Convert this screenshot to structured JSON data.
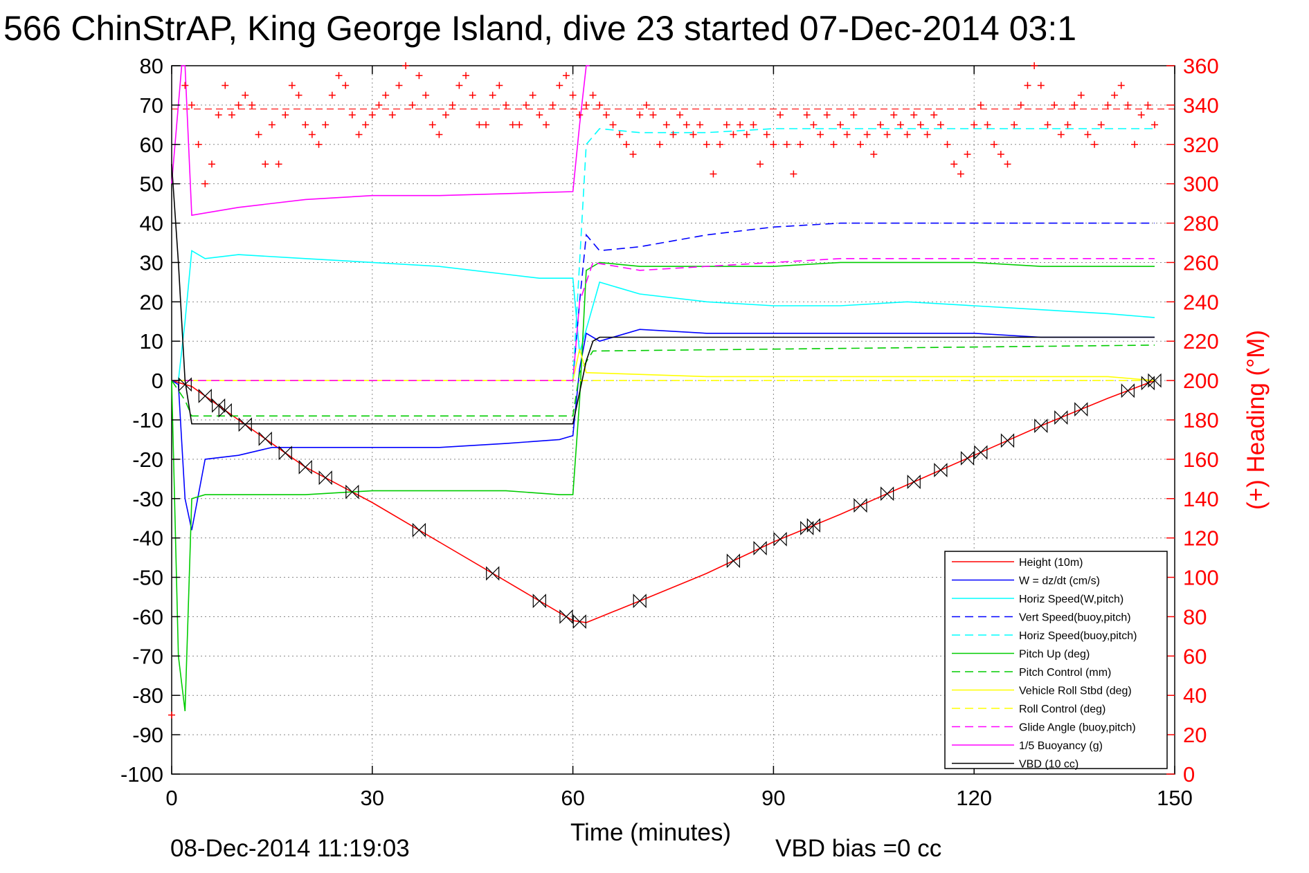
{
  "chart_data": {
    "type": "line",
    "title": "566 ChinStrAP, King George Island, dive 23 started 07-Dec-2014 03:1",
    "xlabel": "Time (minutes)",
    "ylabel": "",
    "y2label": "(+) Heading (°M)",
    "footer_left": "08-Dec-2014 11:19:03",
    "footer_right": "VBD bias =0 cc",
    "xlim": [
      0,
      150
    ],
    "ylim": [
      -100,
      80
    ],
    "y2lim": [
      0,
      360
    ],
    "x_ticks": [
      "0",
      "30",
      "60",
      "90",
      "120",
      "150"
    ],
    "y_ticks": [
      "80",
      "70",
      "60",
      "50",
      "40",
      "30",
      "20",
      "10",
      "0",
      "-10",
      "-20",
      "-30",
      "-40",
      "-50",
      "-60",
      "-70",
      "-80",
      "-90",
      "-100"
    ],
    "y2_ticks": [
      "360",
      "340",
      "320",
      "300",
      "280",
      "260",
      "240",
      "220",
      "200",
      "180",
      "160",
      "140",
      "120",
      "100",
      "80",
      "60",
      "40",
      "20",
      "0"
    ],
    "grid": true,
    "legend_position": "bottom-right",
    "series": [
      {
        "name": "Height (10m)",
        "color": "#ff0000",
        "style": "solid",
        "x": [
          0,
          3,
          10,
          20,
          30,
          40,
          50,
          55,
          60,
          62,
          70,
          80,
          90,
          100,
          110,
          120,
          130,
          140,
          147
        ],
        "y": [
          0,
          -1.5,
          -10,
          -22,
          -31,
          -41,
          -51,
          -56,
          -61,
          -61.5,
          -56,
          -49,
          -41,
          -34,
          -26.5,
          -19,
          -11.5,
          -4.5,
          0
        ]
      },
      {
        "name": "W = dz/dt (cm/s)",
        "color": "#0000ff",
        "style": "solid",
        "x": [
          0,
          1,
          2,
          3,
          5,
          10,
          15,
          20,
          30,
          40,
          50,
          58,
          60,
          61,
          62,
          64,
          70,
          80,
          90,
          100,
          110,
          120,
          130,
          140,
          147
        ],
        "y": [
          0,
          -1,
          -30,
          -38,
          -20,
          -19,
          -17,
          -17,
          -17,
          -17,
          -16,
          -15,
          -14,
          3,
          12,
          10,
          13,
          12,
          12,
          12,
          12,
          12,
          11,
          11,
          11
        ]
      },
      {
        "name": "Horiz Speed(W,pitch)",
        "color": "#00ffff",
        "style": "solid",
        "x": [
          0,
          1,
          2,
          3,
          5,
          10,
          20,
          30,
          40,
          50,
          55,
          60,
          61,
          62,
          64,
          70,
          80,
          90,
          100,
          110,
          120,
          130,
          140,
          147
        ],
        "y": [
          0,
          0,
          15,
          33,
          31,
          32,
          31,
          30,
          29,
          27,
          26,
          26,
          7,
          13,
          25,
          22,
          20,
          19,
          19,
          20,
          19,
          18,
          17,
          16
        ]
      },
      {
        "name": "Vert Speed(buoy,pitch)",
        "color": "#0000ff",
        "style": "dashed",
        "x": [
          60,
          61,
          62,
          64,
          70,
          80,
          90,
          100,
          110,
          120,
          130,
          140,
          147
        ],
        "y": [
          0,
          20,
          37,
          33,
          34,
          37,
          39,
          40,
          40,
          40,
          40,
          40,
          40
        ]
      },
      {
        "name": "Horiz Speed(buoy,pitch)",
        "color": "#00ffff",
        "style": "dashed",
        "x": [
          60,
          61,
          62,
          64,
          70,
          80,
          90,
          100,
          110,
          120,
          130,
          140,
          147
        ],
        "y": [
          0,
          30,
          60,
          64,
          63,
          63,
          64,
          64,
          64,
          64,
          64,
          64,
          64
        ]
      },
      {
        "name": "Pitch Up (deg)",
        "color": "#00cc00",
        "style": "solid",
        "x": [
          0,
          1,
          2,
          3,
          5,
          10,
          20,
          30,
          40,
          50,
          58,
          60,
          61,
          62,
          64,
          70,
          80,
          90,
          100,
          110,
          120,
          130,
          140,
          147
        ],
        "y": [
          0,
          -70,
          -84,
          -30,
          -29,
          -29,
          -29,
          -28,
          -28,
          -28,
          -29,
          -29,
          -5,
          28,
          30,
          29,
          29,
          29,
          30,
          30,
          30,
          29,
          29,
          29
        ]
      },
      {
        "name": "Pitch Control (mm)",
        "color": "#00cc00",
        "style": "dashed",
        "x": [
          0,
          2,
          3,
          60,
          61,
          63,
          147
        ],
        "y": [
          0,
          -5,
          -9,
          -9,
          2,
          7.5,
          9
        ]
      },
      {
        "name": "Vehicle Roll Stbd (deg)",
        "color": "#ffff00",
        "style": "solid",
        "x": [
          0,
          2,
          5,
          20,
          40,
          60,
          61,
          62,
          80,
          100,
          120,
          140,
          147
        ],
        "y": [
          0,
          0,
          0,
          0,
          0,
          0,
          8,
          2,
          1,
          1,
          1,
          1,
          0
        ]
      },
      {
        "name": "Roll Control (deg)",
        "color": "#ffff00",
        "style": "dashed",
        "x": [
          0,
          147
        ],
        "y": [
          0,
          0
        ]
      },
      {
        "name": "Glide Angle (buoy,pitch)",
        "color": "#ff00ff",
        "style": "dashed",
        "x": [
          0,
          60,
          61,
          63,
          70,
          80,
          90,
          100,
          110,
          120,
          130,
          140,
          147
        ],
        "y": [
          0,
          0,
          20,
          30,
          28,
          29,
          30,
          31,
          31,
          31,
          31,
          31,
          31
        ]
      },
      {
        "name": "1/5 Buoyancy (g)",
        "color": "#ff00ff",
        "style": "solid",
        "x": [
          0,
          1.5,
          2,
          3,
          10,
          20,
          30,
          40,
          50,
          60,
          61,
          62,
          62.5
        ],
        "y": [
          50,
          80,
          80,
          42,
          44,
          46,
          47,
          47,
          47.5,
          48,
          65,
          80,
          80
        ]
      },
      {
        "name": "VBD (10 cc)",
        "color": "#000000",
        "style": "solid",
        "x": [
          0,
          1,
          2,
          3,
          60,
          61,
          62,
          63,
          64,
          147
        ],
        "y": [
          55,
          30,
          0,
          -11,
          -11,
          -3,
          5,
          10,
          11,
          11
        ]
      }
    ],
    "heading_series": {
      "name": "Heading",
      "color": "#ff0000",
      "marker": "+",
      "axis": "y2",
      "x": [
        0,
        2,
        3,
        4,
        5,
        6,
        7,
        8,
        9,
        10,
        11,
        12,
        13,
        14,
        15,
        16,
        17,
        18,
        19,
        20,
        21,
        22,
        23,
        24,
        25,
        26,
        27,
        28,
        29,
        30,
        31,
        32,
        33,
        34,
        35,
        36,
        37,
        38,
        39,
        40,
        41,
        42,
        43,
        44,
        45,
        46,
        47,
        48,
        49,
        50,
        51,
        52,
        53,
        54,
        55,
        56,
        57,
        58,
        59,
        60,
        61,
        62,
        63,
        64,
        65,
        66,
        67,
        68,
        69,
        70,
        71,
        72,
        73,
        74,
        75,
        76,
        77,
        78,
        79,
        80,
        81,
        82,
        83,
        84,
        85,
        86,
        87,
        88,
        89,
        90,
        91,
        92,
        93,
        94,
        95,
        96,
        97,
        98,
        99,
        100,
        101,
        102,
        103,
        104,
        105,
        106,
        107,
        108,
        109,
        110,
        111,
        112,
        113,
        114,
        115,
        116,
        117,
        118,
        119,
        120,
        121,
        122,
        123,
        124,
        125,
        126,
        127,
        128,
        129,
        130,
        131,
        132,
        133,
        134,
        135,
        136,
        137,
        138,
        139,
        140,
        141,
        142,
        143,
        144,
        145,
        146,
        147
      ],
      "y": [
        30,
        350,
        340,
        320,
        300,
        310,
        335,
        350,
        335,
        340,
        345,
        340,
        325,
        310,
        330,
        310,
        335,
        350,
        345,
        330,
        325,
        320,
        330,
        345,
        355,
        350,
        335,
        325,
        330,
        335,
        340,
        345,
        335,
        350,
        360,
        340,
        355,
        345,
        330,
        325,
        335,
        340,
        350,
        355,
        345,
        330,
        330,
        345,
        350,
        340,
        330,
        330,
        340,
        345,
        335,
        330,
        340,
        350,
        355,
        345,
        335,
        340,
        345,
        340,
        335,
        330,
        325,
        320,
        315,
        335,
        340,
        335,
        320,
        330,
        325,
        335,
        330,
        325,
        330,
        320,
        305,
        320,
        330,
        325,
        330,
        325,
        330,
        310,
        325,
        320,
        335,
        320,
        305,
        320,
        335,
        330,
        325,
        335,
        320,
        330,
        325,
        335,
        320,
        325,
        315,
        330,
        325,
        335,
        330,
        325,
        335,
        330,
        325,
        335,
        330,
        320,
        310,
        305,
        315,
        330,
        340,
        330,
        320,
        315,
        310,
        330,
        340,
        350,
        360,
        350,
        330,
        340,
        325,
        330,
        340,
        345,
        325,
        320,
        330,
        340,
        345,
        350,
        340,
        320,
        335,
        340,
        330
      ]
    },
    "reference_line": {
      "axis": "y2",
      "value": 338,
      "color": "#ff0000",
      "style": "dashed"
    }
  }
}
